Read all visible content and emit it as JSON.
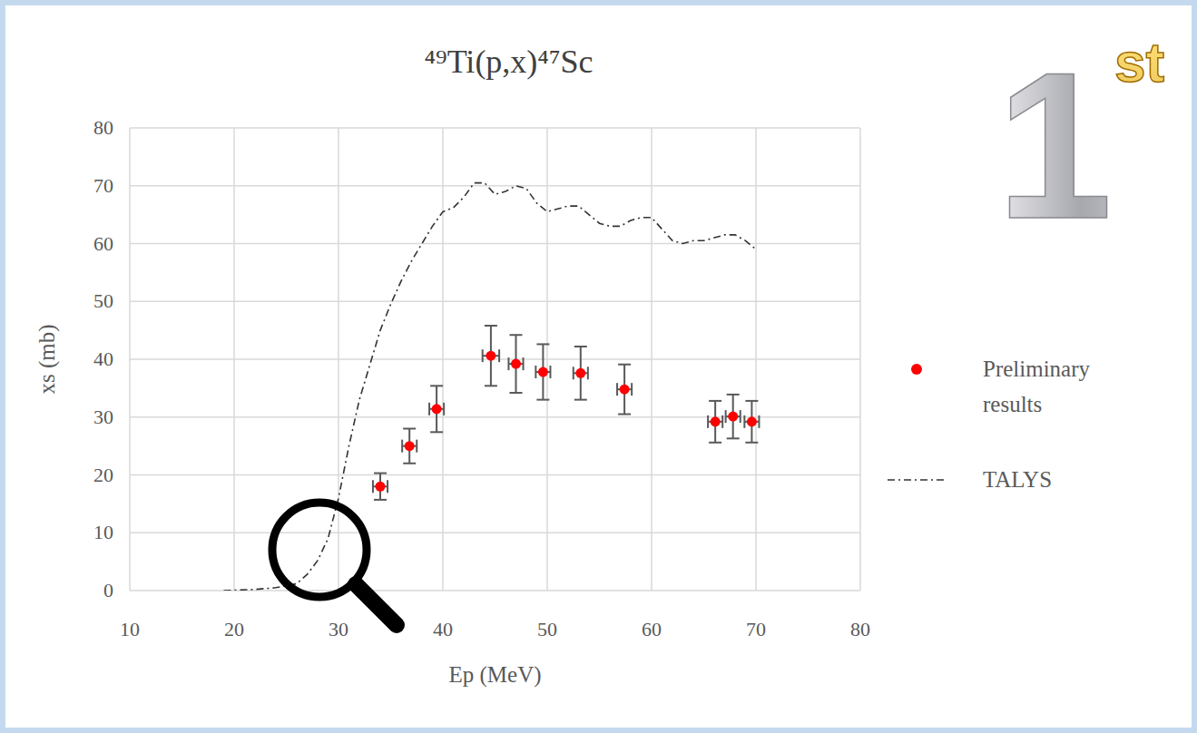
{
  "chart_data": {
    "type": "scatter",
    "title": "⁴⁹Ti(p,x)⁴⁷Sc",
    "x_label": "Ep (MeV)",
    "y_label": "xs (mb)",
    "annotations": [
      "1st"
    ],
    "xlim": [
      10,
      80
    ],
    "xticks": [
      10,
      20,
      30,
      40,
      50,
      60,
      70,
      80
    ],
    "ylim": [
      0,
      80
    ],
    "yticks": [
      0,
      10,
      20,
      30,
      40,
      50,
      60,
      70,
      80
    ],
    "grid": true,
    "legend": "right",
    "series": [
      {
        "name": "Preliminary results",
        "type": "scatter",
        "color": "#ff0000",
        "marker": "circle",
        "x": [
          34.0,
          36.8,
          39.4,
          44.6,
          47.0,
          49.6,
          53.2,
          57.4,
          66.1,
          67.8,
          69.6
        ],
        "values": [
          18.0,
          25.0,
          31.4,
          40.6,
          39.2,
          37.8,
          37.6,
          34.8,
          29.2,
          30.1,
          29.2
        ],
        "y_errors": [
          2.3,
          3.0,
          4.0,
          5.2,
          5.0,
          4.8,
          4.6,
          4.3,
          3.6,
          3.8,
          3.6
        ],
        "x_errors": [
          0.7,
          0.7,
          0.7,
          0.8,
          0.7,
          0.7,
          0.7,
          0.7,
          0.7,
          0.7,
          0.7
        ]
      },
      {
        "name": "TALYS",
        "type": "line",
        "color": "#333333",
        "line_style": "dashdot",
        "x": [
          19,
          22,
          24,
          26,
          27,
          28,
          29,
          30,
          31,
          32,
          33,
          34,
          35,
          36,
          37,
          38,
          39,
          40,
          41,
          42,
          43,
          44,
          45,
          46,
          47,
          48,
          49,
          50,
          51,
          52,
          53,
          54,
          55,
          56,
          57,
          58,
          59,
          60,
          61,
          62,
          63,
          64,
          65,
          66,
          67,
          68,
          69,
          70
        ],
        "values": [
          0,
          0.2,
          0.5,
          1.2,
          2.8,
          5.2,
          9,
          16,
          25,
          33,
          39,
          45,
          49.5,
          53.5,
          57,
          60,
          63,
          65.5,
          66.2,
          68,
          70.5,
          70.5,
          68.5,
          69,
          70,
          69.5,
          67,
          65.5,
          66,
          66.5,
          66.5,
          65,
          63.5,
          63,
          63,
          64,
          64.5,
          64.5,
          62.5,
          60.5,
          60,
          60.5,
          60.5,
          61,
          61.5,
          61.5,
          60.5,
          59
        ]
      }
    ]
  }
}
